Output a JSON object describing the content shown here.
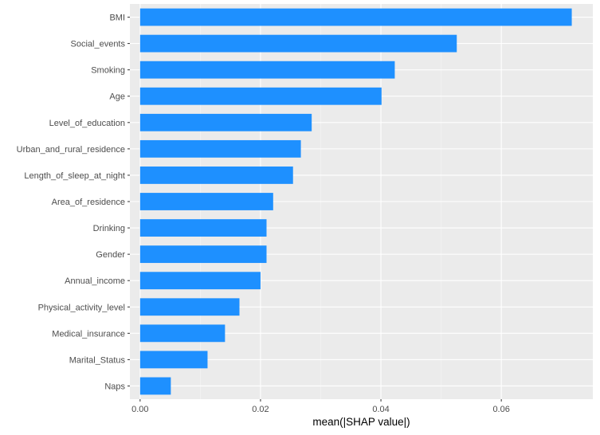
{
  "chart_data": {
    "type": "bar",
    "orientation": "horizontal",
    "categories": [
      "BMI",
      "Social_events",
      "Smoking",
      "Age",
      "Level_of_education",
      "Urban_and_rural_residence",
      "Length_of_sleep_at_night",
      "Area_of_residence",
      "Drinking",
      "Gender",
      "Annual_income",
      "Physical_activity_level",
      "Medical_insurance",
      "Marital_Status",
      "Naps"
    ],
    "values": [
      0.0717,
      0.0526,
      0.0423,
      0.0401,
      0.0285,
      0.0267,
      0.0254,
      0.0221,
      0.021,
      0.021,
      0.02,
      0.0165,
      0.0141,
      0.0112,
      0.0051
    ],
    "title": "",
    "xlabel": "mean(|SHAP value|)",
    "ylabel": "",
    "xlim": [
      -0.0017,
      0.0752
    ],
    "x_ticks": [
      0.0,
      0.02,
      0.04,
      0.06
    ],
    "x_tick_labels": [
      "0.00",
      "0.02",
      "0.04",
      "0.06"
    ],
    "grid": true,
    "legend": "none",
    "colors": {
      "bar": "#1E90FF",
      "panel_background": "#EBEBEB",
      "grid_major": "#FFFFFF",
      "grid_minor": "#F5F5F5",
      "tick_text": "#4D4D4D",
      "axis_title": "#000000"
    }
  }
}
